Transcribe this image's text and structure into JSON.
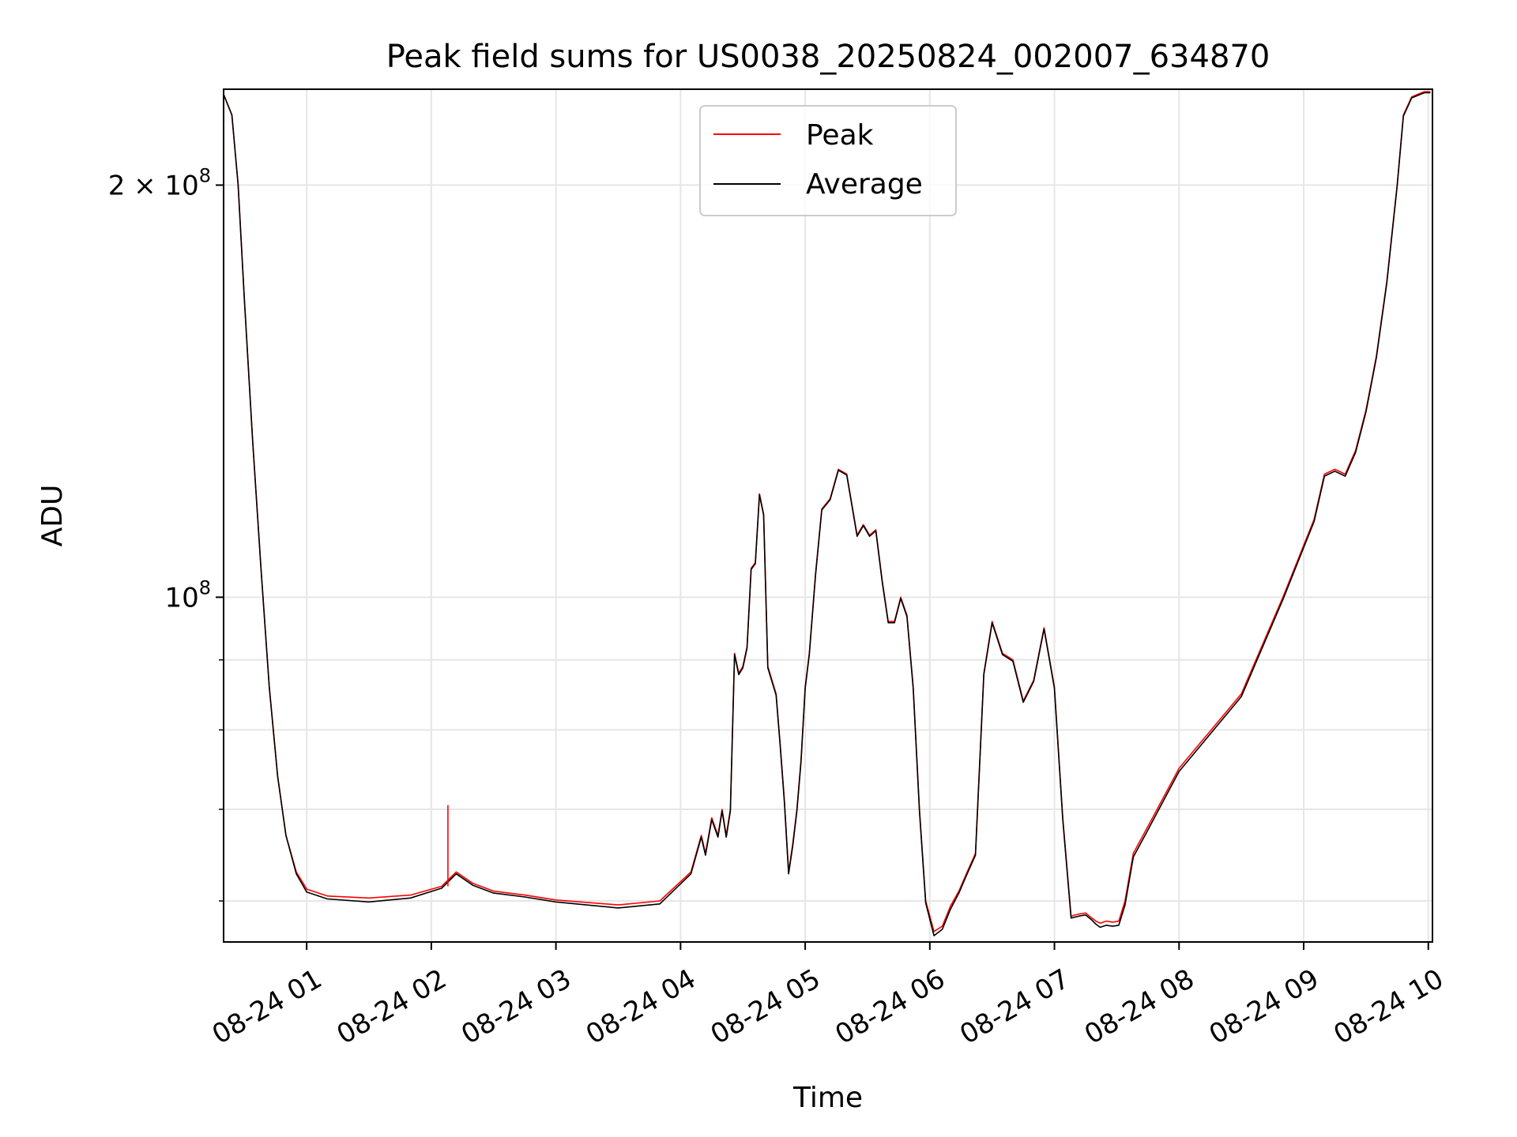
{
  "chart_data": {
    "type": "line",
    "title": "Peak field sums for US0038_20250824_002007_634870",
    "xlabel": "Time",
    "ylabel": "ADU",
    "y_scale": "log",
    "ylim": [
      56000000,
      235000000
    ],
    "xlim": [
      "2025-08-24 00:20",
      "2025-08-24 10:02"
    ],
    "grid": true,
    "legend": {
      "placement": "upper center",
      "entries": [
        "Peak",
        "Average"
      ]
    },
    "x_ticks": [
      {
        "value": "2025-08-24 01:00",
        "label": "08-24 01"
      },
      {
        "value": "2025-08-24 02:00",
        "label": "08-24 02"
      },
      {
        "value": "2025-08-24 03:00",
        "label": "08-24 03"
      },
      {
        "value": "2025-08-24 04:00",
        "label": "08-24 04"
      },
      {
        "value": "2025-08-24 05:00",
        "label": "08-24 05"
      },
      {
        "value": "2025-08-24 06:00",
        "label": "08-24 06"
      },
      {
        "value": "2025-08-24 07:00",
        "label": "08-24 07"
      },
      {
        "value": "2025-08-24 08:00",
        "label": "08-24 08"
      },
      {
        "value": "2025-08-24 09:00",
        "label": "08-24 09"
      },
      {
        "value": "2025-08-24 10:00",
        "label": "08-24 10"
      }
    ],
    "y_major_ticks": [
      {
        "value": 100000000,
        "label_base": "10",
        "label_exp": "8",
        "label_prefix": ""
      },
      {
        "value": 200000000,
        "label_base": "10",
        "label_exp": "8",
        "label_prefix": "2 × "
      }
    ],
    "y_minor_ticks": [
      60000000,
      70000000,
      80000000,
      90000000
    ],
    "series": [
      {
        "name": "Peak",
        "color": "#ff0000",
        "x": [
          "2025-08-24 00:20",
          "2025-08-24 00:24",
          "2025-08-24 00:27",
          "2025-08-24 00:30",
          "2025-08-24 00:34",
          "2025-08-24 00:38",
          "2025-08-24 00:42",
          "2025-08-24 00:46",
          "2025-08-24 00:50",
          "2025-08-24 00:55",
          "2025-08-24 01:00",
          "2025-08-24 01:10",
          "2025-08-24 01:30",
          "2025-08-24 01:50",
          "2025-08-24 02:05",
          "2025-08-24 02:12",
          "2025-08-24 02:20",
          "2025-08-24 02:30",
          "2025-08-24 02:45",
          "2025-08-24 03:00",
          "2025-08-24 03:30",
          "2025-08-24 03:50",
          "2025-08-24 04:05",
          "2025-08-24 04:10",
          "2025-08-24 04:12",
          "2025-08-24 04:15",
          "2025-08-24 04:18",
          "2025-08-24 04:20",
          "2025-08-24 04:22",
          "2025-08-24 04:24",
          "2025-08-24 04:26",
          "2025-08-24 04:28",
          "2025-08-24 04:30",
          "2025-08-24 04:32",
          "2025-08-24 04:34",
          "2025-08-24 04:36",
          "2025-08-24 04:38",
          "2025-08-24 04:40",
          "2025-08-24 04:42",
          "2025-08-24 04:44",
          "2025-08-24 04:46",
          "2025-08-24 04:48",
          "2025-08-24 04:50",
          "2025-08-24 04:52",
          "2025-08-24 04:54",
          "2025-08-24 04:56",
          "2025-08-24 04:58",
          "2025-08-24 05:00",
          "2025-08-24 05:02",
          "2025-08-24 05:05",
          "2025-08-24 05:08",
          "2025-08-24 05:12",
          "2025-08-24 05:16",
          "2025-08-24 05:20",
          "2025-08-24 05:25",
          "2025-08-24 05:28",
          "2025-08-24 05:31",
          "2025-08-24 05:34",
          "2025-08-24 05:37",
          "2025-08-24 05:40",
          "2025-08-24 05:43",
          "2025-08-24 05:46",
          "2025-08-24 05:49",
          "2025-08-24 05:52",
          "2025-08-24 05:55",
          "2025-08-24 05:58",
          "2025-08-24 06:02",
          "2025-08-24 06:06",
          "2025-08-24 06:10",
          "2025-08-24 06:14",
          "2025-08-24 06:18",
          "2025-08-24 06:22",
          "2025-08-24 06:26",
          "2025-08-24 06:30",
          "2025-08-24 06:35",
          "2025-08-24 06:40",
          "2025-08-24 06:45",
          "2025-08-24 06:50",
          "2025-08-24 06:55",
          "2025-08-24 07:00",
          "2025-08-24 07:04",
          "2025-08-24 07:08",
          "2025-08-24 07:12",
          "2025-08-24 07:15",
          "2025-08-24 07:18",
          "2025-08-24 07:20",
          "2025-08-24 07:22",
          "2025-08-24 07:25",
          "2025-08-24 07:28",
          "2025-08-24 07:31",
          "2025-08-24 07:34",
          "2025-08-24 07:38",
          "2025-08-24 07:45",
          "2025-08-24 08:00",
          "2025-08-24 08:30",
          "2025-08-24 08:50",
          "2025-08-24 09:05",
          "2025-08-24 09:10",
          "2025-08-24 09:15",
          "2025-08-24 09:20",
          "2025-08-24 09:25",
          "2025-08-24 09:30",
          "2025-08-24 09:35",
          "2025-08-24 09:40",
          "2025-08-24 09:45",
          "2025-08-24 09:48",
          "2025-08-24 09:52",
          "2025-08-24 09:55",
          "2025-08-24 09:58",
          "2025-08-24 10:01"
        ],
        "y": [
          233000000,
          225000000,
          200000000,
          165000000,
          130000000,
          105000000,
          86000000,
          74000000,
          67000000,
          63000000,
          61200000,
          60500000,
          60300000,
          60600000,
          61500000,
          63000000,
          61800000,
          61000000,
          60600000,
          60100000,
          59600000,
          60000000,
          63000000,
          67000000,
          65000000,
          69000000,
          67000000,
          70000000,
          67000000,
          70000000,
          91000000,
          88000000,
          89000000,
          92000000,
          105000000,
          106000000,
          119000000,
          115000000,
          89000000,
          87000000,
          85000000,
          78000000,
          71000000,
          63000000,
          66000000,
          70000000,
          76000000,
          86000000,
          91000000,
          104000000,
          116000000,
          118000000,
          124000000,
          123000000,
          111000000,
          113000000,
          111000000,
          112000000,
          103000000,
          96000000,
          96000000,
          100000000,
          97000000,
          86000000,
          70000000,
          60000000,
          57000000,
          57500000,
          59500000,
          61000000,
          63000000,
          65000000,
          88000000,
          96000000,
          91000000,
          90000000,
          84000000,
          87000000,
          95000000,
          86000000,
          69000000,
          58500000,
          58700000,
          58800000,
          58300000,
          58000000,
          57800000,
          58000000,
          57900000,
          58000000,
          60000000,
          65000000,
          68000000,
          75000000,
          85000000,
          100000000,
          114000000,
          123000000,
          124000000,
          123000000,
          128000000,
          137000000,
          150000000,
          170000000,
          200000000,
          225000000,
          232000000,
          233000000,
          234000000,
          234000000
        ]
      },
      {
        "name": "Average",
        "color": "#000000",
        "x": [
          "2025-08-24 00:20",
          "2025-08-24 00:24",
          "2025-08-24 00:27",
          "2025-08-24 00:30",
          "2025-08-24 00:34",
          "2025-08-24 00:38",
          "2025-08-24 00:42",
          "2025-08-24 00:46",
          "2025-08-24 00:50",
          "2025-08-24 00:55",
          "2025-08-24 01:00",
          "2025-08-24 01:10",
          "2025-08-24 01:30",
          "2025-08-24 01:50",
          "2025-08-24 02:05",
          "2025-08-24 02:12",
          "2025-08-24 02:20",
          "2025-08-24 02:30",
          "2025-08-24 02:45",
          "2025-08-24 03:00",
          "2025-08-24 03:30",
          "2025-08-24 03:50",
          "2025-08-24 04:05",
          "2025-08-24 04:10",
          "2025-08-24 04:12",
          "2025-08-24 04:15",
          "2025-08-24 04:18",
          "2025-08-24 04:20",
          "2025-08-24 04:22",
          "2025-08-24 04:24",
          "2025-08-24 04:26",
          "2025-08-24 04:28",
          "2025-08-24 04:30",
          "2025-08-24 04:32",
          "2025-08-24 04:34",
          "2025-08-24 04:36",
          "2025-08-24 04:38",
          "2025-08-24 04:40",
          "2025-08-24 04:42",
          "2025-08-24 04:44",
          "2025-08-24 04:46",
          "2025-08-24 04:48",
          "2025-08-24 04:50",
          "2025-08-24 04:52",
          "2025-08-24 04:54",
          "2025-08-24 04:56",
          "2025-08-24 04:58",
          "2025-08-24 05:00",
          "2025-08-24 05:02",
          "2025-08-24 05:05",
          "2025-08-24 05:08",
          "2025-08-24 05:12",
          "2025-08-24 05:16",
          "2025-08-24 05:20",
          "2025-08-24 05:25",
          "2025-08-24 05:28",
          "2025-08-24 05:31",
          "2025-08-24 05:34",
          "2025-08-24 05:37",
          "2025-08-24 05:40",
          "2025-08-24 05:43",
          "2025-08-24 05:46",
          "2025-08-24 05:49",
          "2025-08-24 05:52",
          "2025-08-24 05:55",
          "2025-08-24 05:58",
          "2025-08-24 06:02",
          "2025-08-24 06:06",
          "2025-08-24 06:10",
          "2025-08-24 06:14",
          "2025-08-24 06:18",
          "2025-08-24 06:22",
          "2025-08-24 06:26",
          "2025-08-24 06:30",
          "2025-08-24 06:35",
          "2025-08-24 06:40",
          "2025-08-24 06:45",
          "2025-08-24 06:50",
          "2025-08-24 06:55",
          "2025-08-24 07:00",
          "2025-08-24 07:04",
          "2025-08-24 07:08",
          "2025-08-24 07:12",
          "2025-08-24 07:15",
          "2025-08-24 07:18",
          "2025-08-24 07:20",
          "2025-08-24 07:22",
          "2025-08-24 07:25",
          "2025-08-24 07:28",
          "2025-08-24 07:31",
          "2025-08-24 07:34",
          "2025-08-24 07:38",
          "2025-08-24 07:45",
          "2025-08-24 08:00",
          "2025-08-24 08:30",
          "2025-08-24 08:50",
          "2025-08-24 09:05",
          "2025-08-24 09:10",
          "2025-08-24 09:15",
          "2025-08-24 09:20",
          "2025-08-24 09:25",
          "2025-08-24 09:30",
          "2025-08-24 09:35",
          "2025-08-24 09:40",
          "2025-08-24 09:45",
          "2025-08-24 09:48",
          "2025-08-24 09:52",
          "2025-08-24 09:55",
          "2025-08-24 09:58",
          "2025-08-24 10:01"
        ],
        "y": [
          233000000,
          225000000,
          200000000,
          165000000,
          130000000,
          105000000,
          86000000,
          74000000,
          67000000,
          62800000,
          60900000,
          60200000,
          59900000,
          60300000,
          61300000,
          62800000,
          61600000,
          60800000,
          60400000,
          59900000,
          59300000,
          59700000,
          62800000,
          66800000,
          64800000,
          68800000,
          66800000,
          69800000,
          66800000,
          69800000,
          90800000,
          87800000,
          88800000,
          91800000,
          104800000,
          105800000,
          118800000,
          114800000,
          88800000,
          86800000,
          84800000,
          77800000,
          70800000,
          62800000,
          65800000,
          69800000,
          75800000,
          85800000,
          90800000,
          103800000,
          115800000,
          117800000,
          123800000,
          122800000,
          110800000,
          112800000,
          110800000,
          111800000,
          102800000,
          95800000,
          95800000,
          99800000,
          96800000,
          85800000,
          69800000,
          59800000,
          56600000,
          57200000,
          59200000,
          60800000,
          62800000,
          64800000,
          87800000,
          95800000,
          90800000,
          89800000,
          83800000,
          86800000,
          94800000,
          85800000,
          68800000,
          58300000,
          58500000,
          58600000,
          58100000,
          57700000,
          57400000,
          57600000,
          57500000,
          57600000,
          59600000,
          64600000,
          67600000,
          74600000,
          84600000,
          99600000,
          113600000,
          122600000,
          123600000,
          122600000,
          127600000,
          136600000,
          149600000,
          169600000,
          199600000,
          224600000,
          231600000,
          232600000,
          233600000,
          233600000
        ]
      }
    ],
    "spikes": [
      {
        "x": "2025-08-24 02:08",
        "y": 70500000,
        "series": "Peak"
      }
    ]
  }
}
